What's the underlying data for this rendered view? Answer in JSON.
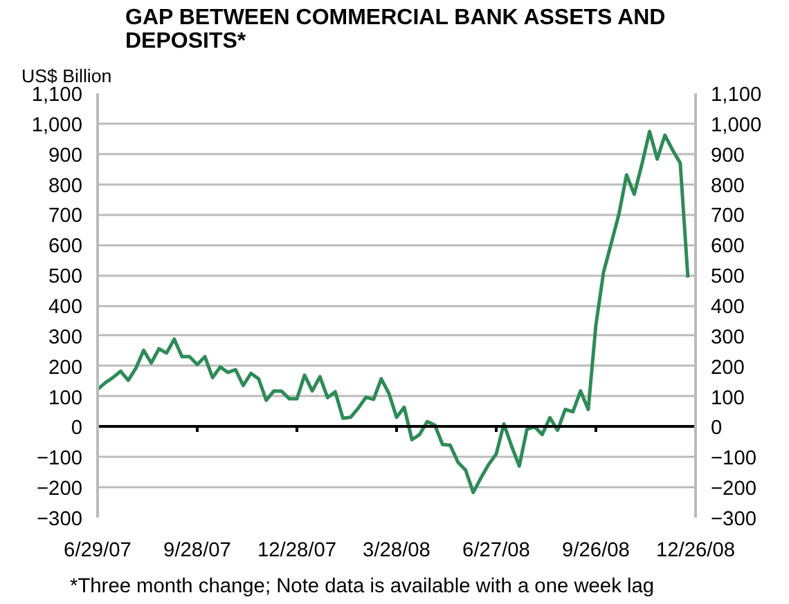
{
  "chart_data": {
    "type": "line",
    "title": "GAP BETWEEN COMMERCIAL BANK ASSETS AND DEPOSITS*",
    "ylabel": "US$ Billion",
    "x": [
      "2007-06-29",
      "2007-07-06",
      "2007-07-13",
      "2007-07-20",
      "2007-07-27",
      "2007-08-03",
      "2007-08-10",
      "2007-08-17",
      "2007-08-24",
      "2007-08-31",
      "2007-09-07",
      "2007-09-14",
      "2007-09-21",
      "2007-09-28",
      "2007-10-05",
      "2007-10-12",
      "2007-10-19",
      "2007-10-26",
      "2007-11-02",
      "2007-11-09",
      "2007-11-16",
      "2007-11-23",
      "2007-11-30",
      "2007-12-07",
      "2007-12-14",
      "2007-12-21",
      "2007-12-28",
      "2008-01-04",
      "2008-01-11",
      "2008-01-18",
      "2008-01-25",
      "2008-02-01",
      "2008-02-08",
      "2008-02-15",
      "2008-02-22",
      "2008-02-29",
      "2008-03-07",
      "2008-03-14",
      "2008-03-21",
      "2008-03-28",
      "2008-04-04",
      "2008-04-11",
      "2008-04-18",
      "2008-04-25",
      "2008-05-02",
      "2008-05-09",
      "2008-05-16",
      "2008-05-23",
      "2008-05-30",
      "2008-06-06",
      "2008-06-13",
      "2008-06-20",
      "2008-06-27",
      "2008-07-04",
      "2008-07-11",
      "2008-07-18",
      "2008-07-25",
      "2008-08-01",
      "2008-08-08",
      "2008-08-15",
      "2008-08-22",
      "2008-08-29",
      "2008-09-05",
      "2008-09-12",
      "2008-09-19",
      "2008-09-26",
      "2008-10-03",
      "2008-10-10",
      "2008-10-17",
      "2008-10-24",
      "2008-10-31",
      "2008-11-07",
      "2008-11-14",
      "2008-11-21",
      "2008-11-28",
      "2008-12-05",
      "2008-12-12",
      "2008-12-19"
    ],
    "series": [
      {
        "color": "#2e8b57",
        "values": [
          123,
          145,
          162,
          183,
          153,
          193,
          252,
          210,
          257,
          243,
          289,
          231,
          231,
          205,
          231,
          162,
          197,
          179,
          188,
          136,
          176,
          158,
          87,
          118,
          117,
          92,
          92,
          170,
          118,
          165,
          96,
          115,
          28,
          31,
          61,
          97,
          90,
          158,
          110,
          31,
          64,
          -43,
          -26,
          17,
          5,
          -59,
          -61,
          -117,
          -143,
          -217,
          -169,
          -125,
          -90,
          9,
          -64,
          -130,
          -9,
          0,
          -26,
          30,
          -12,
          57,
          49,
          118,
          57,
          336,
          510,
          605,
          701,
          831,
          767,
          866,
          974,
          883,
          962,
          913,
          870,
          492
        ]
      }
    ],
    "xlim": [
      "2007-06-29",
      "2008-12-26"
    ],
    "xticks": [
      {
        "value": "2007-06-29",
        "label": "6/29/07"
      },
      {
        "value": "2007-09-28",
        "label": "9/28/07"
      },
      {
        "value": "2007-12-28",
        "label": "12/28/07"
      },
      {
        "value": "2008-03-28",
        "label": "3/28/08"
      },
      {
        "value": "2008-06-27",
        "label": "6/27/08"
      },
      {
        "value": "2008-09-26",
        "label": "9/26/08"
      },
      {
        "value": "2008-12-26",
        "label": "12/26/08"
      }
    ],
    "ylim": [
      -300,
      1100
    ],
    "yticks": [
      -300,
      -200,
      -100,
      0,
      100,
      200,
      300,
      400,
      500,
      600,
      700,
      800,
      900,
      {
        "value": 1000,
        "label": "1,000"
      },
      {
        "value": 1100,
        "label": "1,100"
      }
    ],
    "y2lim": [
      -300,
      1100
    ],
    "y2ticks": [
      -300,
      -200,
      -100,
      0,
      100,
      200,
      300,
      400,
      500,
      600,
      700,
      800,
      900,
      {
        "value": 1000,
        "label": "1,000"
      },
      {
        "value": 1100,
        "label": "1,100"
      }
    ],
    "grid": "y",
    "marker": "none",
    "line_style": "solid",
    "annotations": [
      "*Three month change;  Note data is available with a one week lag"
    ]
  }
}
